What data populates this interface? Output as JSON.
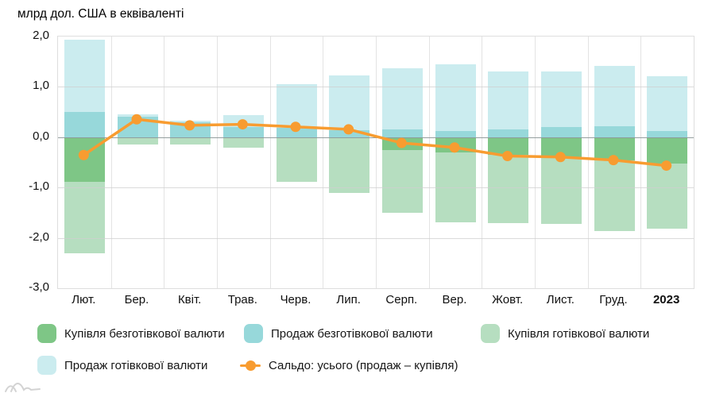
{
  "chart_data": {
    "type": "bar",
    "title": "млрд дол. США в еквіваленті",
    "xlabel": "",
    "ylabel": "",
    "ylim": [
      -3.0,
      2.0
    ],
    "grid": true,
    "legend_position": "bottom",
    "categories": [
      "Лют.",
      "Бер.",
      "Квіт.",
      "Трав.",
      "Черв.",
      "Лип.",
      "Серп.",
      "Вер.",
      "Жовт.",
      "Лист.",
      "Груд.",
      "2023"
    ],
    "last_category_bold": true,
    "yticks": [
      {
        "value": 2,
        "label": "2,0"
      },
      {
        "value": 1,
        "label": "1,0"
      },
      {
        "value": 0,
        "label": "0,0"
      },
      {
        "value": -1,
        "label": "-1,0"
      },
      {
        "value": -2,
        "label": "-2,0"
      },
      {
        "value": -3,
        "label": "-3,0"
      }
    ],
    "series": [
      {
        "name": "Купівля безготівкової валюти",
        "type": "bar",
        "color": "#7ec686",
        "values": [
          -0.88,
          0,
          0,
          0,
          0,
          0,
          -0.25,
          -0.3,
          -0.35,
          -0.4,
          -0.46,
          -0.53
        ]
      },
      {
        "name": "Продаж безготівкової валюти",
        "type": "bar",
        "color": "#97d8da",
        "values": [
          0.5,
          0.4,
          0.3,
          0.2,
          0.18,
          0.14,
          0.15,
          0.13,
          0.15,
          0.2,
          0.21,
          0.13
        ]
      },
      {
        "name": "Купівля готівкової валюти",
        "type": "bar",
        "color": "#b6dec0",
        "values": [
          -1.42,
          -0.15,
          -0.14,
          -0.21,
          -0.89,
          -1.1,
          -1.25,
          -1.39,
          -1.36,
          -1.33,
          -1.41,
          -1.28
        ]
      },
      {
        "name": "Продаж готівкової валюти",
        "type": "bar",
        "color": "#cbecef",
        "values": [
          1.43,
          0.06,
          0.03,
          0.24,
          0.88,
          1.08,
          1.22,
          1.32,
          1.16,
          1.11,
          1.2,
          1.08
        ]
      },
      {
        "name": "Сальдо: усього (продаж – купівля)",
        "type": "line",
        "color": "#f89c30",
        "values": [
          -0.37,
          0.34,
          0.22,
          0.24,
          0.19,
          0.14,
          -0.13,
          -0.22,
          -0.39,
          -0.41,
          -0.47,
          -0.58
        ]
      }
    ]
  },
  "icons": {
    "watermark": "waves-chart-logo",
    "saldo_legend": "orange-line-with-dot"
  },
  "colors": {
    "grid": "#e3e3e3",
    "zero_line": "#8e9a9a",
    "text": "#1a1a1a",
    "watermark": "#d3d3d3"
  }
}
